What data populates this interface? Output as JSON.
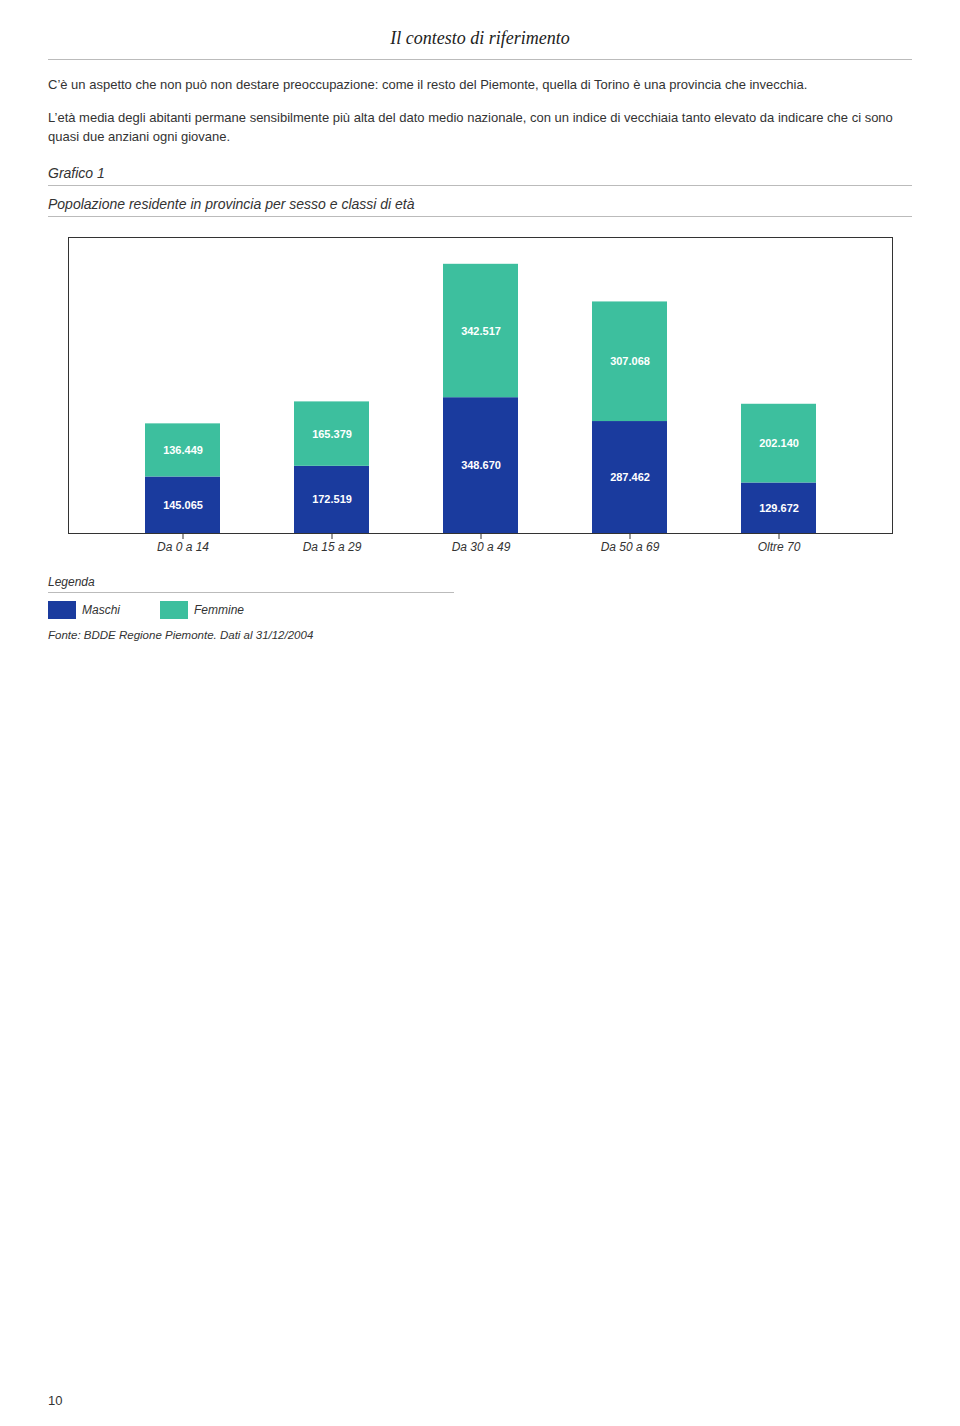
{
  "page": {
    "title": "Il contesto di riferimento",
    "paragraphs": [
      "C’è un aspetto che non può non destare preoccupazione: come il resto del Piemonte, quella di Torino è una provincia che invecchia.",
      "L’età media degli abitanti permane sensibilmente più alta del dato medio nazionale, con un indice di vecchiaia tanto elevato da indicare che ci sono quasi due anziani ogni giovane."
    ],
    "page_number": "10"
  },
  "chart_data": {
    "type": "bar",
    "stacked": true,
    "subtitle": "Grafico 1",
    "title": "Popolazione residente in provincia per sesso e classi di età",
    "categories": [
      "Da 0 a 14",
      "Da 15 a 29",
      "Da 30 a 49",
      "Da 50 a 69",
      "Oltre 70"
    ],
    "series": [
      {
        "name": "Maschi",
        "color": "#1a3b9e",
        "values": [
          145065,
          172519,
          348670,
          287462,
          129672
        ],
        "value_labels": [
          "145.065",
          "172.519",
          "348.670",
          "287.462",
          "129.672"
        ]
      },
      {
        "name": "Femmine",
        "color": "#3dbf9e",
        "values": [
          136449,
          165379,
          342517,
          307068,
          202140
        ],
        "value_labels": [
          "136.449",
          "165.379",
          "342.517",
          "307.068",
          "202.140"
        ]
      }
    ],
    "ylim": [
      0,
      760000
    ],
    "grid": false,
    "data_labels": true,
    "tick_labels": "x",
    "legend": "bottom",
    "legend_title": "Legenda",
    "source": "Fonte: BDDE Regione Piemonte. Dati al 31/12/2004"
  }
}
